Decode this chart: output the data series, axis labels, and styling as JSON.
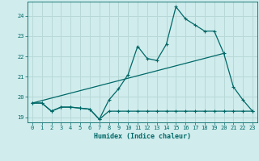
{
  "title": "",
  "xlabel": "Humidex (Indice chaleur)",
  "bg_color": "#d0ecec",
  "grid_color": "#b8d8d8",
  "line_color": "#006868",
  "xlim": [
    -0.5,
    23.5
  ],
  "ylim": [
    18.75,
    24.7
  ],
  "yticks": [
    19,
    20,
    21,
    22,
    23,
    24
  ],
  "xticks": [
    0,
    1,
    2,
    3,
    4,
    5,
    6,
    7,
    8,
    9,
    10,
    11,
    12,
    13,
    14,
    15,
    16,
    17,
    18,
    19,
    20,
    21,
    22,
    23
  ],
  "line1_x": [
    0,
    1,
    2,
    3,
    4,
    5,
    6,
    7,
    8,
    9,
    10,
    11,
    12,
    13,
    14,
    15,
    16,
    17,
    18,
    19,
    20,
    21,
    22,
    23
  ],
  "line1_y": [
    19.7,
    19.7,
    19.3,
    19.5,
    19.5,
    19.45,
    19.4,
    18.9,
    19.85,
    20.4,
    21.1,
    22.5,
    21.9,
    21.8,
    22.6,
    24.45,
    23.85,
    23.55,
    23.25,
    23.25,
    22.15,
    20.5,
    19.85,
    19.3
  ],
  "line2_x": [
    0,
    1,
    2,
    3,
    4,
    5,
    6,
    7,
    8,
    9,
    10,
    11,
    12,
    13,
    14,
    15,
    16,
    17,
    18,
    19,
    20,
    21,
    22,
    23
  ],
  "line2_y": [
    19.7,
    19.7,
    19.3,
    19.5,
    19.5,
    19.45,
    19.4,
    18.9,
    19.3,
    19.3,
    19.3,
    19.3,
    19.3,
    19.3,
    19.3,
    19.3,
    19.3,
    19.3,
    19.3,
    19.3,
    19.3,
    19.3,
    19.3,
    19.3
  ],
  "line3_x": [
    0,
    20
  ],
  "line3_y": [
    19.7,
    22.15
  ]
}
